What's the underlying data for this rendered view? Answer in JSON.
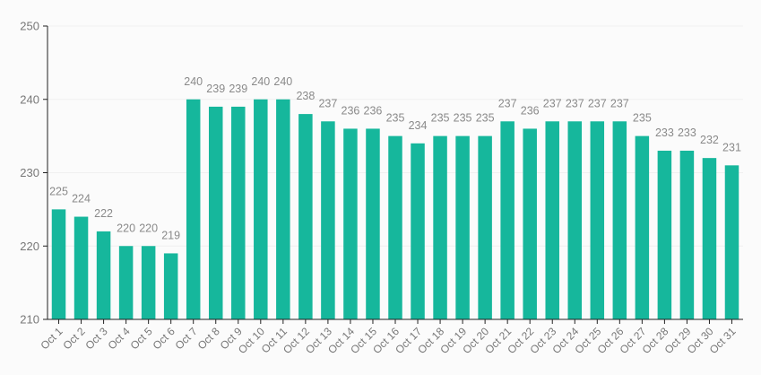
{
  "chart_data": {
    "type": "bar",
    "categories": [
      "Oct 1",
      "Oct 2",
      "Oct 3",
      "Oct 4",
      "Oct 5",
      "Oct 6",
      "Oct 7",
      "Oct 8",
      "Oct 9",
      "Oct 10",
      "Oct 11",
      "Oct 12",
      "Oct 13",
      "Oct 14",
      "Oct 15",
      "Oct 16",
      "Oct 17",
      "Oct 18",
      "Oct 19",
      "Oct 20",
      "Oct 21",
      "Oct 22",
      "Oct 23",
      "Oct 24",
      "Oct 25",
      "Oct 26",
      "Oct 27",
      "Oct 28",
      "Oct 29",
      "Oct 30",
      "Oct 31"
    ],
    "values": [
      225,
      224,
      222,
      220,
      220,
      219,
      240,
      239,
      239,
      240,
      240,
      238,
      237,
      236,
      236,
      235,
      234,
      235,
      235,
      235,
      237,
      236,
      237,
      237,
      237,
      237,
      235,
      233,
      233,
      232,
      231
    ],
    "ylim": [
      210,
      250
    ],
    "yticks": [
      210,
      220,
      230,
      240,
      250
    ],
    "grid": true,
    "legend": "none",
    "bar_color": "#16b79c",
    "title": "",
    "xlabel": "",
    "ylabel": ""
  }
}
